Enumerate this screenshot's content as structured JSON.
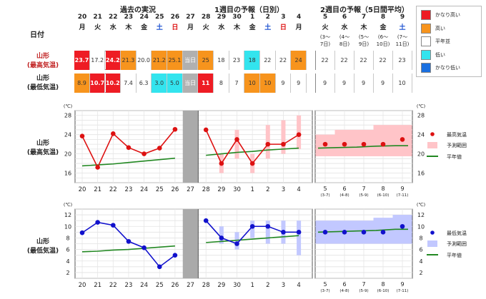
{
  "header": {
    "date_label": "日付",
    "past_label": "過去の実況",
    "week1_label": "1週目の予報（日別）",
    "week2_label": "2週目の予報（5日間平均）"
  },
  "days": [
    {
      "d": "20",
      "w": "月",
      "high": "23.7",
      "low": "8.9",
      "hc": "red",
      "lc": "orange"
    },
    {
      "d": "21",
      "w": "火",
      "high": "17.2",
      "low": "10.7",
      "hc": "white",
      "lc": "red"
    },
    {
      "d": "22",
      "w": "水",
      "high": "24.2",
      "low": "10.2",
      "hc": "red",
      "lc": "red"
    },
    {
      "d": "23",
      "w": "木",
      "high": "21.3",
      "low": "7.4",
      "hc": "orange",
      "lc": "white"
    },
    {
      "d": "24",
      "w": "金",
      "high": "20.0",
      "low": "6.3",
      "hc": "white",
      "lc": "white"
    },
    {
      "d": "25",
      "w": "土",
      "high": "21.2",
      "low": "3.0",
      "hc": "orange",
      "lc": "cyan"
    },
    {
      "d": "26",
      "w": "日",
      "high": "25.1",
      "low": "5.0",
      "hc": "orange",
      "lc": "cyan"
    },
    {
      "d": "27",
      "w": "月",
      "high": "当日",
      "low": "当日",
      "hc": "gray",
      "lc": "gray"
    },
    {
      "d": "28",
      "w": "火",
      "high": "25",
      "low": "11",
      "hc": "orange",
      "lc": "red"
    },
    {
      "d": "29",
      "w": "水",
      "high": "18",
      "low": "8",
      "hc": "white",
      "lc": "white"
    },
    {
      "d": "30",
      "w": "木",
      "high": "23",
      "low": "7",
      "hc": "white",
      "lc": "white"
    },
    {
      "d": "1",
      "w": "金",
      "high": "18",
      "low": "10",
      "hc": "cyan",
      "lc": "orange"
    },
    {
      "d": "2",
      "w": "土",
      "high": "22",
      "low": "10",
      "hc": "white",
      "lc": "orange"
    },
    {
      "d": "3",
      "w": "日",
      "high": "22",
      "low": "9",
      "hc": "white",
      "lc": "white"
    },
    {
      "d": "4",
      "w": "月",
      "high": "24",
      "low": "9",
      "hc": "orange",
      "lc": "white"
    }
  ],
  "periods": [
    {
      "d": "5",
      "w": "火",
      "r1": "(3〜",
      "r2": "7日)",
      "high": "22",
      "low": "9",
      "rs": "(3-7)"
    },
    {
      "d": "6",
      "w": "水",
      "r1": "(4〜",
      "r2": "8日)",
      "high": "22",
      "low": "9",
      "rs": "(4-8)"
    },
    {
      "d": "7",
      "w": "木",
      "r1": "(5〜",
      "r2": "9日)",
      "high": "22",
      "low": "9",
      "rs": "(5-9)"
    },
    {
      "d": "8",
      "w": "金",
      "r1": "(6〜",
      "r2": "10日)",
      "high": "22",
      "low": "9",
      "rs": "(6-10)"
    },
    {
      "d": "9",
      "w": "土",
      "r1": "(7〜",
      "r2": "11日)",
      "high": "23",
      "low": "10",
      "rs": "(7-11)"
    }
  ],
  "row_labels": {
    "high_a": "山形",
    "high_b": "(最高気温)",
    "low_a": "山形",
    "low_b": "(最低気温)"
  },
  "legend": [
    {
      "label": "かなり高い",
      "color": "#ee1c24"
    },
    {
      "label": "高い",
      "color": "#f7941d"
    },
    {
      "label": "平年並",
      "color": "#ffffff"
    },
    {
      "label": "低い",
      "color": "#33e4ee"
    },
    {
      "label": "かなり低い",
      "color": "#1a6fe0"
    }
  ],
  "colors": {
    "red": "#ee1c24",
    "orange": "#f7941d",
    "white": "#ffffff",
    "cyan": "#33e4ee",
    "gray": "#b0b0b0",
    "high_line": "#dd1111",
    "low_line": "#1111cc",
    "normal_line": "#228822",
    "high_band": "#ffc4c8",
    "low_band": "#c2c8ff"
  },
  "chart_data": [
    {
      "type": "line",
      "title": "山形 (最高気温)",
      "unit": "(℃)",
      "ylim": [
        14,
        29
      ],
      "yticks": [
        16,
        20,
        24,
        28
      ],
      "x": [
        "20",
        "21",
        "22",
        "23",
        "24",
        "25",
        "26",
        "27",
        "28",
        "29",
        "30",
        "1",
        "2",
        "3",
        "4"
      ],
      "series": [
        {
          "name": "最高気温",
          "values": [
            23.7,
            17.2,
            24.2,
            21.3,
            20.0,
            21.2,
            25.1,
            null,
            25,
            18,
            23,
            18,
            22,
            22,
            24
          ]
        },
        {
          "name": "予測範囲",
          "ranges": [
            null,
            null,
            null,
            null,
            null,
            null,
            null,
            null,
            null,
            [
              16,
              20
            ],
            [
              19,
              25
            ],
            [
              16,
              20
            ],
            [
              19,
              26
            ],
            [
              20,
              27
            ],
            [
              21,
              28
            ]
          ]
        },
        {
          "name": "平年値",
          "values": [
            17.5,
            17.7,
            17.9,
            18.2,
            18.5,
            18.8,
            19.1,
            null,
            19.7,
            20.0,
            20.3,
            20.5,
            20.8,
            21.0,
            21.2
          ]
        }
      ],
      "period_x": [
        "5",
        "6",
        "7",
        "8",
        "9"
      ],
      "period_ranges": [
        "(3-7)",
        "(4-8)",
        "(5-9)",
        "(6-10)",
        "(7-11)"
      ],
      "period_values": [
        22,
        22,
        22,
        22,
        23
      ],
      "period_band": [
        [
          19.5,
          24
        ],
        [
          19.5,
          25
        ],
        [
          19.5,
          25
        ],
        [
          19.5,
          26
        ],
        [
          19.5,
          26
        ]
      ],
      "period_normal": [
        21.2,
        21.3,
        21.4,
        21.6,
        21.7
      ],
      "legend": [
        "最高気温",
        "予測範囲",
        "平年値"
      ]
    },
    {
      "type": "line",
      "title": "山形 (最低気温)",
      "unit": "(℃)",
      "ylim": [
        1,
        13
      ],
      "yticks": [
        2,
        4,
        6,
        8,
        10,
        12
      ],
      "x": [
        "20",
        "21",
        "22",
        "23",
        "24",
        "25",
        "26",
        "27",
        "28",
        "29",
        "30",
        "1",
        "2",
        "3",
        "4"
      ],
      "series": [
        {
          "name": "最低気温",
          "values": [
            8.9,
            10.7,
            10.2,
            7.4,
            6.3,
            3.0,
            5.0,
            null,
            11,
            8,
            7,
            10,
            10,
            9,
            9
          ]
        },
        {
          "name": "予測範囲",
          "ranges": [
            null,
            null,
            null,
            null,
            null,
            null,
            null,
            null,
            null,
            [
              7,
              10
            ],
            [
              6,
              9
            ],
            [
              8,
              11
            ],
            [
              7,
              11
            ],
            [
              7,
              11
            ],
            [
              5,
              11
            ]
          ]
        },
        {
          "name": "平年値",
          "values": [
            5.6,
            5.7,
            5.9,
            6.0,
            6.2,
            6.4,
            6.6,
            null,
            7.2,
            7.4,
            7.6,
            7.8,
            8.0,
            8.2,
            8.4
          ]
        }
      ],
      "period_x": [
        "5",
        "6",
        "7",
        "8",
        "9"
      ],
      "period_ranges": [
        "(3-7)",
        "(4-8)",
        "(5-9)",
        "(6-10)",
        "(7-11)"
      ],
      "period_values": [
        9,
        9,
        9,
        9,
        10
      ],
      "period_band": [
        [
          7,
          11
        ],
        [
          7,
          11
        ],
        [
          7,
          11
        ],
        [
          7,
          11.5
        ],
        [
          7,
          12
        ]
      ],
      "period_normal": [
        9.0,
        9.1,
        9.2,
        9.3,
        9.5
      ],
      "legend": [
        "最低気温",
        "予測範囲",
        "平年値"
      ]
    }
  ]
}
